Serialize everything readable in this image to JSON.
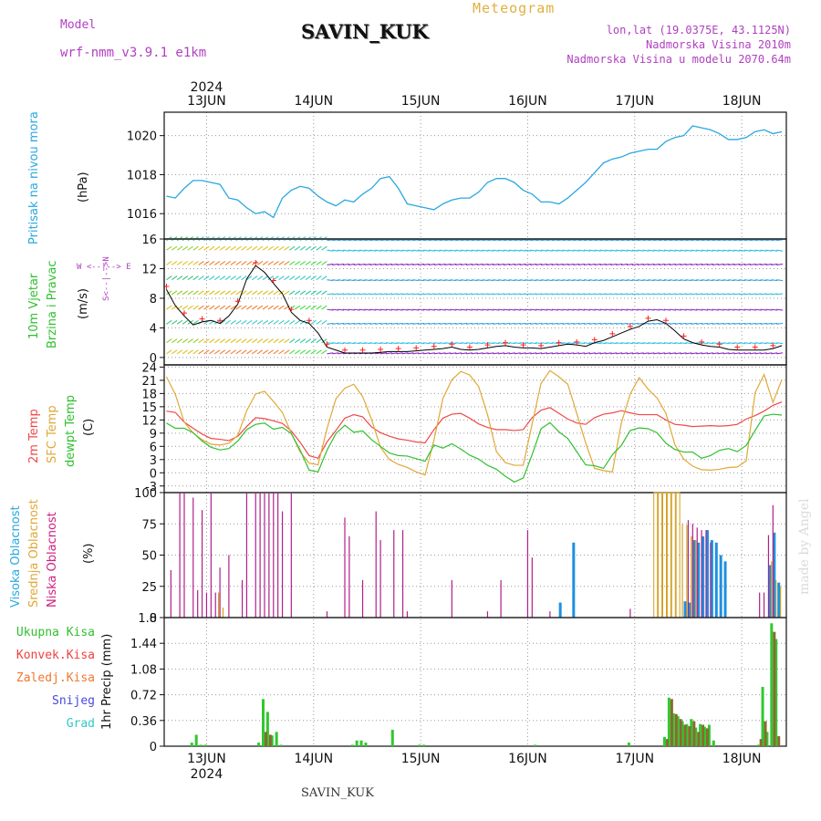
{
  "header": {
    "model_label": "Model",
    "model_name": "wrf-nmm_v3.9.1  e1km",
    "station": "SAVIN_KUK",
    "meteogram": "Meteogram",
    "lonlat": "lon,lat (19.0375E, 43.1125N)",
    "elevation": "Nadmorska Visina 2010m",
    "model_elevation": "Nadmorska Visina u modelu 2070.64m"
  },
  "footer": {
    "station": "SAVIN_KUK",
    "made_by": "made by Angel"
  },
  "time_axis": {
    "year": "2024",
    "day_labels": [
      "13JUN",
      "14JUN",
      "15JUN",
      "16JUN",
      "17JUN",
      "18JUN"
    ],
    "start_hour_offset": -9.5,
    "end_hour_offset": 130
  },
  "colors": {
    "pressure": "#2aa8e0",
    "temp2m": "#f04848",
    "sfc": "#e0a838",
    "dewpt": "#30c030",
    "high_cloud": "#1e90e0",
    "mid_cloud": "#d4a020",
    "low_cloud": "#b0208a",
    "total_rain": "#30c830",
    "conv_rain": "#f04040",
    "frz_rain": "#f07830",
    "snow": "#4848e0",
    "hail": "#30c8c8",
    "wind_speed_line": "#000000",
    "gust": "#ff2020"
  },
  "panels": {
    "pressure": {
      "label": "Pritisak na nivou mora",
      "unit": "(hPa)",
      "ticks": [
        1016,
        1018,
        1020
      ],
      "ylim": [
        1014.7,
        1021.2
      ]
    },
    "wind": {
      "label_line1": "10m Vjetar",
      "label_line2": "Brzina i Pravac",
      "unit": "(m/s)",
      "ticks": [
        0,
        4,
        8,
        12,
        16
      ],
      "ylim": [
        -1,
        16
      ],
      "compass_n": "N",
      "compass_e": "E",
      "compass_w": "W",
      "compass_s": "S",
      "compass_arrows": "<--|-->"
    },
    "temp": {
      "label_2m": "2m Temp",
      "label_sfc": "SFC Temp",
      "label_dew": "dewpt Temp",
      "unit": "(C)",
      "ticks": [
        -3,
        0,
        3,
        6,
        9,
        12,
        15,
        18,
        21,
        24
      ],
      "ylim": [
        -4.5,
        24.5
      ]
    },
    "cloud": {
      "label_high": "Visoka Oblacnost",
      "label_mid": "Srednja Oblacnost",
      "label_low": "Niska Oblacnost",
      "unit": "(%)",
      "ticks": [
        0,
        25,
        50,
        75,
        100
      ],
      "ylim": [
        0,
        100
      ]
    },
    "precip": {
      "label": "1hr Precip",
      "unit": "(mm)",
      "ticks": [
        0,
        0.36,
        0.72,
        1.08,
        1.44,
        1.8
      ],
      "ylim": [
        0,
        1.8
      ],
      "legend": [
        "Ukupna  Kisa",
        "Konvek.Kisa",
        "Zaledj.Kisa",
        "Snijeg",
        "Grad"
      ]
    }
  },
  "chart_data": [
    {
      "type": "line",
      "title": "Pritisak na nivou mora",
      "ylabel": "(hPa)",
      "ylim": [
        1014.7,
        1021.2
      ],
      "series": [
        {
          "name": "Pritisak na nivou mora",
          "x": [
            -9,
            -7,
            -5,
            -3,
            -1,
            1,
            3,
            5,
            7,
            9,
            11,
            13,
            15,
            17,
            19,
            21,
            23,
            25,
            27,
            29,
            31,
            33,
            35,
            37,
            39,
            41,
            43,
            45,
            47,
            49,
            51,
            53,
            55,
            57,
            59,
            61,
            63,
            65,
            67,
            69,
            71,
            73,
            75,
            77,
            79,
            81,
            83,
            85,
            87,
            89,
            91,
            93,
            95,
            97,
            99,
            101,
            103,
            105,
            107,
            109,
            111,
            113,
            115,
            117,
            119,
            121,
            123,
            125,
            127,
            129
          ],
          "y": [
            1016.9,
            1016.8,
            1017.3,
            1017.7,
            1017.7,
            1017.6,
            1017.5,
            1016.8,
            1016.7,
            1016.3,
            1016.0,
            1016.1,
            1015.8,
            1016.8,
            1017.2,
            1017.4,
            1017.3,
            1016.9,
            1016.6,
            1016.4,
            1016.7,
            1016.6,
            1017.0,
            1017.3,
            1017.8,
            1017.9,
            1017.3,
            1016.5,
            1016.4,
            1016.3,
            1016.2,
            1016.5,
            1016.7,
            1016.8,
            1016.8,
            1017.1,
            1017.6,
            1017.8,
            1017.8,
            1017.6,
            1017.2,
            1017.0,
            1016.6,
            1016.6,
            1016.5,
            1016.8,
            1017.2,
            1017.6,
            1018.1,
            1018.6,
            1018.8,
            1018.9,
            1019.1,
            1019.2,
            1019.3,
            1019.3,
            1019.7,
            1019.9,
            1020.0,
            1020.5,
            1020.4,
            1020.3,
            1020.1,
            1019.8,
            1019.8,
            1019.9,
            1020.2,
            1020.3,
            1020.1,
            1020.2
          ]
        }
      ]
    },
    {
      "type": "line",
      "title": "10m Vjetar Brzina i Pravac",
      "ylabel": "(m/s)",
      "ylim": [
        -1,
        16
      ],
      "series": [
        {
          "name": "speed",
          "x": [
            -9,
            -7,
            -5,
            -3,
            -1,
            1,
            3,
            5,
            7,
            9,
            11,
            13,
            15,
            17,
            19,
            21,
            23,
            25,
            27,
            29,
            31,
            33,
            35,
            37,
            39,
            41,
            43,
            45,
            47,
            49,
            51,
            53,
            55,
            57,
            59,
            61,
            63,
            65,
            67,
            69,
            71,
            73,
            75,
            77,
            79,
            81,
            83,
            85,
            87,
            89,
            91,
            93,
            95,
            97,
            99,
            101,
            103,
            105,
            107,
            109,
            111,
            113,
            115,
            117,
            119,
            121,
            123,
            125,
            127,
            129
          ],
          "y": [
            9.2,
            7.0,
            5.6,
            4.4,
            4.8,
            5.0,
            4.6,
            5.6,
            7.2,
            10.6,
            12.4,
            11.5,
            10.0,
            8.6,
            6.1,
            5.0,
            4.6,
            3.3,
            1.4,
            1.0,
            0.6,
            0.6,
            0.6,
            0.6,
            0.7,
            0.8,
            0.8,
            0.8,
            0.9,
            1.0,
            1.1,
            1.2,
            1.4,
            1.1,
            1.0,
            1.1,
            1.3,
            1.5,
            1.6,
            1.4,
            1.3,
            1.3,
            1.2,
            1.4,
            1.6,
            1.8,
            1.7,
            1.5,
            2.0,
            2.3,
            2.8,
            3.3,
            3.8,
            4.2,
            4.9,
            5.1,
            4.6,
            3.6,
            2.5,
            2.0,
            1.7,
            1.5,
            1.4,
            1.1,
            1.0,
            1.0,
            1.0,
            1.0,
            1.2,
            1.6
          ]
        }
      ]
    },
    {
      "type": "line",
      "title": "2m Temp / SFC Temp / dewpt Temp",
      "ylabel": "(C)",
      "ylim": [
        -4.5,
        24.5
      ],
      "x": [
        -9,
        -7,
        -5,
        -3,
        -1,
        1,
        3,
        5,
        7,
        9,
        11,
        13,
        15,
        17,
        19,
        21,
        23,
        25,
        27,
        29,
        31,
        33,
        35,
        37,
        39,
        41,
        43,
        45,
        47,
        49,
        51,
        53,
        55,
        57,
        59,
        61,
        63,
        65,
        67,
        69,
        71,
        73,
        75,
        77,
        79,
        81,
        83,
        85,
        87,
        89,
        91,
        93,
        95,
        97,
        99,
        101,
        103,
        105,
        107,
        109,
        111,
        113,
        115,
        117,
        119,
        121,
        123,
        125,
        127,
        129
      ],
      "series": [
        {
          "name": "2m Temp",
          "y": [
            14,
            13.7,
            11.5,
            10.1,
            8.8,
            7.8,
            7.6,
            7.3,
            8.3,
            10.5,
            12.5,
            12.3,
            11.8,
            11.2,
            9.5,
            6.9,
            3.9,
            3.3,
            7.0,
            9.6,
            12.4,
            13.2,
            12.7,
            10.4,
            9.1,
            8.3,
            7.7,
            7.4,
            7.0,
            6.8,
            9.8,
            12.4,
            13.3,
            13.5,
            12.4,
            11.1,
            10.3,
            9.8,
            9.8,
            9.6,
            9.8,
            12.5,
            14.2,
            14.8,
            13.5,
            12.2,
            11.3,
            11.0,
            12.5,
            13.3,
            13.6,
            14.1,
            13.6,
            13.2,
            13.2,
            13.2,
            12.0,
            11.0,
            10.8,
            10.5,
            10.6,
            10.7,
            10.6,
            10.7,
            11.0,
            12.2,
            13.0,
            14.0,
            15.3,
            16.1
          ]
        },
        {
          "name": "SFC Temp",
          "y": [
            21.8,
            17.8,
            11.5,
            9.0,
            7.5,
            6.5,
            6.3,
            6.7,
            8.5,
            14.1,
            17.9,
            18.5,
            16.2,
            13.7,
            9.0,
            4.7,
            2.2,
            1.8,
            10.0,
            16.8,
            19.2,
            20.1,
            17.3,
            12.1,
            5.8,
            3.0,
            1.9,
            1.2,
            0.2,
            -0.5,
            7.5,
            16.9,
            21.1,
            23.0,
            22.2,
            19.6,
            13.2,
            4.8,
            2.3,
            1.7,
            1.7,
            11.1,
            20.3,
            23.2,
            21.8,
            20.1,
            13.5,
            6.8,
            1.0,
            0.5,
            0.2,
            11.3,
            17.9,
            21.6,
            19.0,
            17.0,
            13.5,
            6.4,
            3.1,
            1.5,
            0.7,
            0.6,
            0.8,
            1.2,
            1.3,
            2.7,
            18.2,
            22.3,
            16.0,
            21.2
          ]
        },
        {
          "name": "dewpt Temp",
          "y": [
            11.3,
            10.1,
            10.1,
            9.1,
            7.2,
            5.8,
            5.2,
            5.5,
            7.2,
            9.8,
            11.0,
            11.3,
            9.9,
            10.3,
            8.9,
            5.1,
            0.6,
            0.2,
            5.1,
            8.9,
            10.8,
            9.2,
            9.5,
            7.5,
            6.0,
            4.5,
            3.9,
            3.8,
            3.2,
            2.6,
            6.3,
            5.6,
            6.6,
            5.4,
            4.0,
            3.1,
            1.7,
            0.8,
            -0.8,
            -2.1,
            -1.2,
            4.1,
            10.0,
            11.4,
            9.3,
            7.8,
            4.8,
            1.8,
            1.6,
            1.0,
            4.1,
            6.2,
            9.6,
            10.2,
            10.0,
            9.1,
            6.7,
            5.3,
            4.7,
            4.7,
            3.3,
            3.9,
            5.1,
            5.5,
            4.8,
            6.2,
            9.6,
            12.9,
            13.3,
            13.1
          ]
        }
      ]
    },
    {
      "type": "bar",
      "title": "Oblacnost",
      "ylabel": "(%)",
      "ylim": [
        0,
        100
      ],
      "series": [
        {
          "name": "Visoka Oblacnost",
          "x": [
            79,
            82,
            107,
            108,
            109,
            110,
            111,
            112,
            113,
            114,
            115,
            116,
            126,
            127,
            128
          ],
          "values": [
            12,
            60,
            13,
            12,
            62,
            60,
            65,
            70,
            62,
            60,
            50,
            45,
            42,
            68,
            28
          ]
        },
        {
          "name": "Srednja Oblacnost",
          "x": [
            3,
            4,
            101,
            102,
            103,
            104,
            105,
            106,
            107,
            108,
            109,
            110,
            127,
            128,
            129
          ],
          "values": [
            20,
            8,
            100,
            100,
            100,
            100,
            100,
            100,
            75,
            74,
            65,
            62,
            45,
            30,
            25
          ]
        },
        {
          "name": "Niska Oblacnost",
          "x": [
            -8,
            -6,
            -5,
            -3,
            -2,
            -1,
            0,
            1,
            2,
            3,
            5,
            8,
            9,
            11,
            12,
            13,
            14,
            15,
            16,
            17,
            19,
            27,
            31,
            32,
            35,
            38,
            39,
            42,
            44,
            45,
            55,
            63,
            66,
            72,
            73,
            77,
            95,
            108,
            109,
            110,
            111,
            112,
            113,
            124,
            125,
            126,
            127
          ],
          "values": [
            38,
            100,
            100,
            96,
            22,
            86,
            20,
            100,
            20,
            40,
            50,
            30,
            100,
            100,
            100,
            100,
            100,
            100,
            100,
            85,
            100,
            5,
            80,
            65,
            30,
            85,
            62,
            70,
            70,
            5,
            30,
            5,
            30,
            70,
            48,
            5,
            7,
            78,
            75,
            72,
            70,
            70,
            60,
            20,
            20,
            66,
            90
          ]
        }
      ]
    },
    {
      "type": "bar",
      "title": "1hr Precip",
      "ylabel": "(mm)",
      "ylim": [
        0,
        1.8
      ],
      "series": [
        {
          "name": "Ukupna  Kisa",
          "x": [
            -3,
            -2,
            -1,
            0,
            12,
            13,
            14,
            15,
            16,
            17,
            33,
            34,
            35,
            36,
            42,
            48,
            49,
            74,
            95,
            103,
            104,
            105,
            106,
            107,
            108,
            109,
            110,
            111,
            112,
            113,
            114,
            124,
            125,
            126,
            127,
            128
          ],
          "values": [
            0.05,
            0.16,
            0.02,
            0.02,
            0.05,
            0.66,
            0.48,
            0.15,
            0.2,
            0.02,
            0.02,
            0.08,
            0.08,
            0.05,
            0.23,
            0.02,
            0.02,
            0.02,
            0.05,
            0.13,
            0.68,
            0.46,
            0.42,
            0.35,
            0.31,
            0.38,
            0.26,
            0.31,
            0.27,
            0.3,
            0.08,
            0.02,
            0.83,
            0.2,
            1.72,
            1.5
          ]
        },
        {
          "name": "Konvek.Kisa",
          "x": [
            13,
            14,
            103,
            104,
            105,
            106,
            107,
            108,
            109,
            110,
            111,
            112,
            124,
            125,
            127,
            128
          ],
          "values": [
            0.2,
            0.16,
            0.1,
            0.66,
            0.45,
            0.38,
            0.3,
            0.28,
            0.35,
            0.2,
            0.3,
            0.25,
            0.1,
            0.35,
            1.6,
            0.14
          ]
        },
        {
          "name": "Zaledj.Kisa",
          "x": [],
          "values": []
        },
        {
          "name": "Snijeg",
          "x": [],
          "values": []
        },
        {
          "name": "Grad",
          "x": [],
          "values": []
        }
      ]
    }
  ],
  "wind_barbs": {
    "note": ""
  }
}
